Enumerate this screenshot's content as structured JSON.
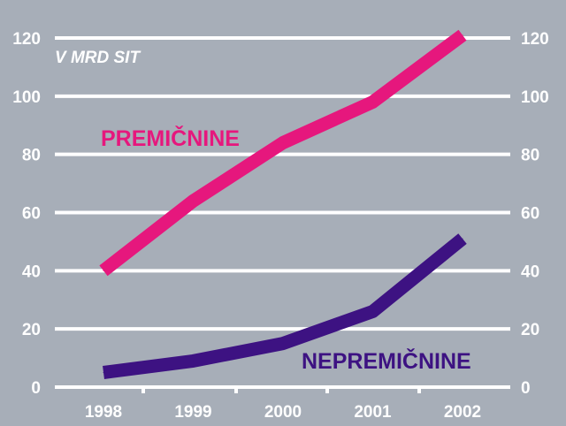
{
  "chart_data": {
    "type": "line",
    "unit_label": "V MRD SIT",
    "categories": [
      "1998",
      "1999",
      "2000",
      "2001",
      "2002"
    ],
    "ylim": [
      0,
      120
    ],
    "yticks": [
      "0",
      "20",
      "40",
      "60",
      "80",
      "100",
      "120"
    ],
    "grid": true,
    "series": [
      {
        "name": "PREMIČNINE",
        "color": "#e6177d",
        "values": [
          40,
          64,
          84,
          98,
          121
        ]
      },
      {
        "name": "NEPREMIČNINE",
        "color": "#3d1282",
        "values": [
          5,
          9,
          15,
          26,
          51
        ]
      }
    ]
  },
  "colors": {
    "background": "#a7aeb8",
    "grid": "#ffffff"
  }
}
